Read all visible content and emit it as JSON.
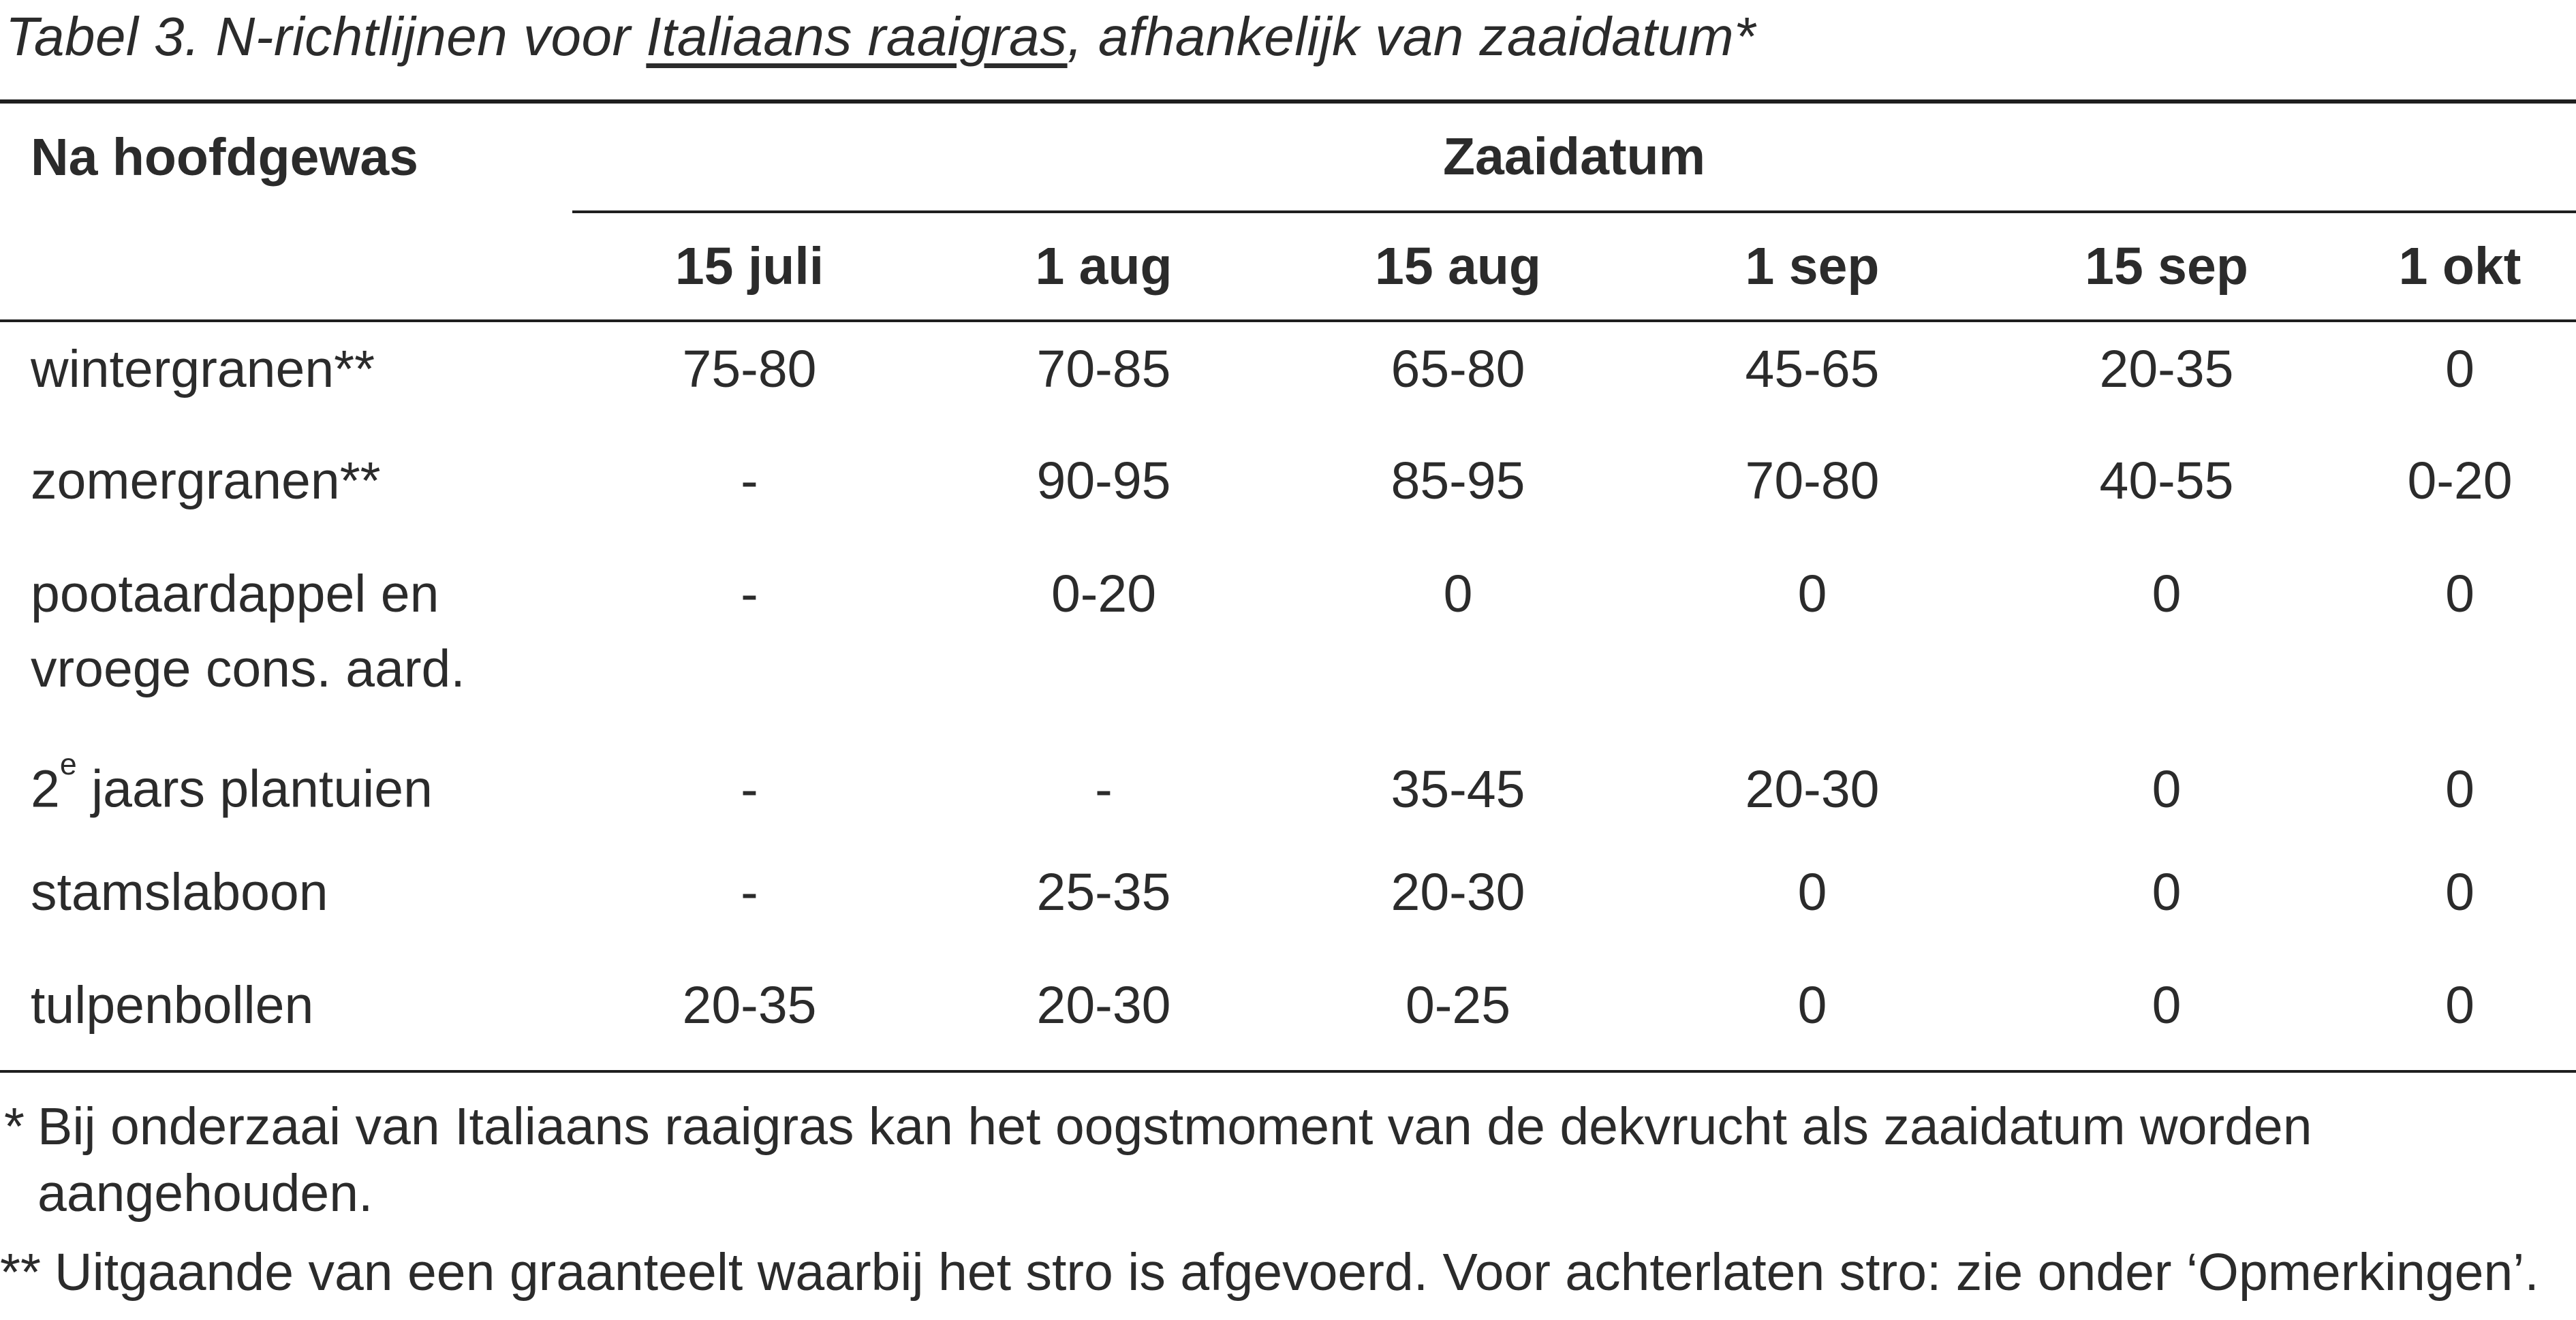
{
  "title": {
    "prefix": "Tabel 3. N-richtlijnen voor ",
    "underlined": "Italiaans raaigras",
    "suffix": ", afhankelijk van zaaidatum*"
  },
  "table": {
    "corner_header": "Na hoofdgewas",
    "group_header": "Zaaidatum",
    "columns": [
      "15 juli",
      "1 aug",
      "15 aug",
      "1 sep",
      "15 sep",
      "1 okt"
    ],
    "rows": [
      {
        "label": "wintergranen**",
        "values": [
          "75-80",
          "70-85",
          "65-80",
          "45-65",
          "20-35",
          "0"
        ]
      },
      {
        "label": "zomergranen**",
        "values": [
          "-",
          "90-95",
          "85-95",
          "70-80",
          "40-55",
          "0-20"
        ]
      },
      {
        "label": "pootaardappel en vroege cons. aard.",
        "values": [
          "-",
          "0-20",
          "0",
          "0",
          "0",
          "0"
        ]
      },
      {
        "label_parts": {
          "pre": "2",
          "sup": "e",
          "rest": " jaars plantuien"
        },
        "values": [
          "-",
          "-",
          "35-45",
          "20-30",
          "0",
          "0"
        ]
      },
      {
        "label": "stamslaboon",
        "values": [
          "-",
          "25-35",
          "20-30",
          "0",
          "0",
          "0"
        ]
      },
      {
        "label": "tulpenbollen",
        "values": [
          "20-35",
          "20-30",
          "0-25",
          "0",
          "0",
          "0"
        ]
      }
    ]
  },
  "footnotes": [
    {
      "marker": "*",
      "lines": [
        "Bij onderzaai van Italiaans raaigras kan het oogstmoment van de dekvrucht als zaaidatum worden",
        "aangehouden."
      ]
    },
    {
      "marker": "**",
      "lines": [
        "Uitgaande van een graanteelt waarbij het stro is afgevoerd. Voor achterlaten stro: zie onder ‘Opmerkingen’."
      ]
    }
  ],
  "colors": {
    "text": "#2b2b2b",
    "rule": "#1f1f1f",
    "background": "#ffffff"
  }
}
